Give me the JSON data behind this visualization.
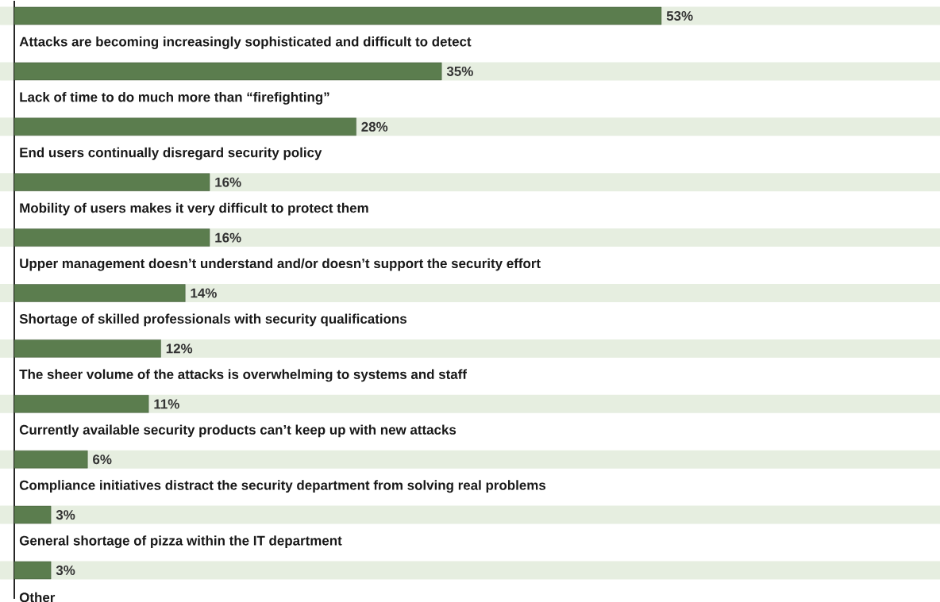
{
  "chart_data": {
    "type": "bar",
    "orientation": "horizontal",
    "color": "#5b7d4e",
    "categories": [
      "Attacks are becoming increasingly sophisticated and difficult to detect",
      "Lack of time to do much more than “firefighting”",
      "End users continually disregard security policy",
      "Mobility of users makes it very difficult to protect them",
      "Upper management doesn’t understand and/or doesn’t support the security effort",
      "Shortage of skilled professionals with security qualifications",
      "The sheer volume of the attacks is overwhelming to systems and staff",
      "Currently available security products can’t keep up with new attacks",
      "Compliance initiatives distract the security department from solving real problems",
      "General shortage of pizza within the IT department",
      "Other"
    ],
    "values": [
      53,
      35,
      28,
      16,
      16,
      14,
      12,
      11,
      6,
      3,
      3
    ],
    "value_labels": [
      "53%",
      "35%",
      "28%",
      "16%",
      "16%",
      "14%",
      "12%",
      "11%",
      "6%",
      "3%",
      "3%"
    ]
  }
}
